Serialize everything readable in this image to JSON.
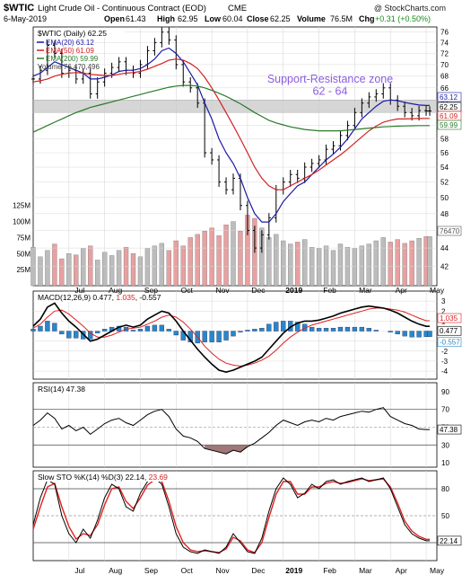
{
  "header": {
    "symbol": "$WTIC",
    "name": "Light Crude Oil - Continuous Contract (EOD)",
    "exchange": "CME",
    "watermark": "@ StockCharts.com",
    "date": "6-May-2019",
    "open_label": "Open",
    "open": "61.43",
    "high_label": "High",
    "high": "62.95",
    "low_label": "Low",
    "low": "60.04",
    "close_label": "Close",
    "close": "62.25",
    "volume_label": "Volume",
    "volume": "76.5M",
    "chg_label": "Chg",
    "chg": "+0.31 (+0.50%)"
  },
  "colors": {
    "price_bars": "#000000",
    "ema20": "#1a1aa6",
    "ema50": "#d42020",
    "ema200": "#2a7a2a",
    "volume_up": "#bcbcbc",
    "volume_down": "#e8a0a0",
    "zone_fill": "#c8c8c8",
    "zone_text": "#8a5ce0",
    "macd_line": "#000000",
    "signal_line": "#e02020",
    "histogram": "#2a86c8",
    "rsi_line": "#000000",
    "rsi_oversold_fill": "#a07878",
    "sto_k": "#000000",
    "sto_d": "#e02020",
    "grid": "#d9d9d9"
  },
  "chart_data": [
    {
      "type": "line",
      "panel": "price",
      "label": "$WTIC (Daily) 62.25",
      "y_scale": "log",
      "ylim": [
        40,
        77
      ],
      "y_ticks": [
        42,
        44,
        46,
        48,
        50,
        52,
        54,
        56,
        58,
        60,
        62,
        64,
        66,
        68,
        70,
        72,
        74,
        76
      ],
      "x_labels": [
        "Jul",
        "Aug",
        "Sep",
        "Oct",
        "Nov",
        "Dec",
        "2019",
        "Feb",
        "Mar",
        "Apr",
        "May"
      ],
      "x_label_months": [
        1,
        2,
        3,
        4,
        5,
        6,
        7,
        8,
        9,
        10,
        11
      ],
      "months_range": [
        0,
        11.3
      ],
      "x": [
        0.0,
        0.2,
        0.4,
        0.6,
        0.8,
        1.0,
        1.2,
        1.4,
        1.6,
        1.8,
        2.0,
        2.2,
        2.4,
        2.6,
        2.8,
        3.0,
        3.2,
        3.4,
        3.6,
        3.8,
        4.0,
        4.2,
        4.4,
        4.6,
        4.8,
        5.0,
        5.2,
        5.4,
        5.6,
        5.8,
        6.0,
        6.2,
        6.4,
        6.6,
        6.8,
        7.0,
        7.2,
        7.4,
        7.6,
        7.8,
        8.0,
        8.2,
        8.4,
        8.6,
        8.8,
        9.0,
        9.2,
        9.4,
        9.6,
        9.8,
        10.0,
        10.2,
        10.4,
        10.6,
        10.8,
        11.0,
        11.1
      ],
      "series": [
        {
          "name": "Close",
          "values": [
            67.5,
            69.0,
            73.5,
            72.0,
            68.5,
            69.0,
            67.5,
            68.5,
            65.0,
            67.0,
            68.5,
            69.5,
            70.5,
            69.0,
            68.5,
            70.0,
            72.5,
            74.0,
            76.0,
            74.5,
            70.0,
            67.0,
            66.0,
            63.5,
            56.0,
            55.0,
            52.0,
            51.0,
            52.5,
            49.0,
            46.0,
            44.0,
            45.5,
            47.5,
            51.0,
            52.0,
            53.0,
            52.5,
            54.0,
            54.5,
            55.0,
            56.5,
            57.0,
            58.5,
            60.0,
            62.0,
            63.5,
            64.5,
            65.0,
            66.0,
            64.0,
            63.0,
            62.0,
            61.5,
            62.3,
            62.25,
            62.25
          ]
        },
        {
          "name": "EMA(20) 63.12",
          "values": [
            68.0,
            68.5,
            69.5,
            70.5,
            70.0,
            69.5,
            69.0,
            68.5,
            67.5,
            67.5,
            67.8,
            68.2,
            68.8,
            69.0,
            69.0,
            69.3,
            70.0,
            71.0,
            72.5,
            73.0,
            72.0,
            70.5,
            68.5,
            66.5,
            63.5,
            61.0,
            58.0,
            56.0,
            54.5,
            52.5,
            50.0,
            48.0,
            47.0,
            47.0,
            48.0,
            49.5,
            50.5,
            51.5,
            52.0,
            53.0,
            54.0,
            55.0,
            55.8,
            56.8,
            58.0,
            59.5,
            61.0,
            62.0,
            63.0,
            63.8,
            64.0,
            63.9,
            63.6,
            63.4,
            63.2,
            63.12,
            63.12
          ]
        },
        {
          "name": "EMA(50) 61.09",
          "values": [
            67.0,
            67.2,
            67.5,
            68.0,
            68.3,
            68.5,
            68.6,
            68.5,
            68.3,
            68.2,
            68.1,
            68.1,
            68.3,
            68.5,
            68.6,
            68.8,
            69.2,
            69.7,
            70.2,
            70.8,
            71.0,
            70.8,
            70.2,
            69.3,
            67.8,
            66.0,
            64.0,
            62.0,
            60.0,
            58.0,
            56.0,
            54.0,
            52.5,
            51.5,
            51.0,
            51.0,
            51.5,
            52.0,
            52.5,
            53.0,
            53.6,
            54.3,
            55.0,
            55.7,
            56.5,
            57.4,
            58.3,
            59.2,
            59.9,
            60.5,
            60.8,
            61.0,
            61.0,
            61.05,
            61.08,
            61.09,
            61.09
          ]
        },
        {
          "name": "EMA(200) 59.99",
          "values": [
            59.0,
            59.5,
            60.0,
            60.5,
            61.0,
            61.5,
            62.0,
            62.4,
            62.8,
            63.1,
            63.4,
            63.7,
            64.0,
            64.3,
            64.6,
            64.9,
            65.2,
            65.5,
            65.8,
            66.1,
            66.3,
            66.4,
            66.4,
            66.3,
            66.0,
            65.6,
            65.1,
            64.6,
            64.0,
            63.4,
            62.7,
            62.0,
            61.4,
            60.8,
            60.4,
            60.1,
            59.8,
            59.6,
            59.4,
            59.3,
            59.2,
            59.2,
            59.2,
            59.2,
            59.3,
            59.4,
            59.5,
            59.6,
            59.7,
            59.8,
            59.85,
            59.9,
            59.93,
            59.96,
            59.98,
            59.99,
            59.99
          ]
        }
      ],
      "last_value_labels": [
        "63.12",
        "62.25",
        "61.09",
        "59.99"
      ],
      "annotations": [
        {
          "text": "Support-Resistance zone",
          "line2": "62 - 64",
          "y_range": [
            62,
            64
          ]
        }
      ],
      "legend_placement": "top-left"
    },
    {
      "type": "bar",
      "panel": "volume",
      "label": "Volume 76,470,496",
      "ylim": [
        0,
        140
      ],
      "y_ticks_labels": [
        "25M",
        "50M",
        "75M",
        "100M",
        "125M"
      ],
      "y_ticks": [
        25,
        50,
        75,
        100,
        125
      ],
      "last_value_label": "76470",
      "values": [
        60,
        45,
        55,
        65,
        42,
        50,
        48,
        58,
        62,
        40,
        52,
        47,
        55,
        60,
        50,
        45,
        58,
        62,
        66,
        55,
        70,
        62,
        75,
        80,
        85,
        90,
        78,
        95,
        100,
        85,
        110,
        105,
        90,
        75,
        80,
        70,
        65,
        68,
        72,
        60,
        58,
        62,
        55,
        65,
        60,
        58,
        62,
        65,
        70,
        75,
        68,
        72,
        66,
        70,
        74,
        76.5,
        76.5
      ],
      "unit": "M"
    },
    {
      "type": "line",
      "panel": "macd",
      "label": "MACD(12,26,9) 0.477, 1.035, -0.557",
      "label_parts": [
        "MACD(12,26,9) 0.477, ",
        "1.035",
        ", -0.557"
      ],
      "ylim": [
        -4.8,
        4.0
      ],
      "y_ticks": [
        -4,
        -3,
        -2,
        -1,
        0,
        1,
        2,
        3
      ],
      "last_value_labels": [
        "1.035",
        "0.477",
        "-0.557"
      ],
      "series": [
        {
          "name": "MACD",
          "values": [
            0.5,
            1.2,
            2.4,
            2.8,
            1.8,
            1.0,
            0.4,
            -0.3,
            -1.0,
            -0.8,
            -0.4,
            0.0,
            0.4,
            0.6,
            0.4,
            0.6,
            1.2,
            1.6,
            2.0,
            1.8,
            1.0,
            0.0,
            -0.9,
            -1.8,
            -2.6,
            -3.3,
            -3.9,
            -4.1,
            -3.9,
            -3.6,
            -3.3,
            -3.0,
            -2.6,
            -1.8,
            -1.0,
            -0.2,
            0.4,
            0.8,
            1.0,
            1.0,
            1.1,
            1.3,
            1.5,
            1.8,
            2.0,
            2.2,
            2.4,
            2.5,
            2.4,
            2.3,
            2.1,
            1.8,
            1.4,
            1.0,
            0.7,
            0.477,
            0.477
          ]
        },
        {
          "name": "Signal",
          "values": [
            0.3,
            0.7,
            1.4,
            2.0,
            2.1,
            1.7,
            1.1,
            0.5,
            -0.2,
            -0.6,
            -0.6,
            -0.4,
            -0.1,
            0.2,
            0.3,
            0.4,
            0.7,
            1.0,
            1.4,
            1.6,
            1.4,
            0.9,
            0.2,
            -0.6,
            -1.5,
            -2.2,
            -2.8,
            -3.2,
            -3.4,
            -3.5,
            -3.4,
            -3.2,
            -2.9,
            -2.5,
            -1.9,
            -1.2,
            -0.6,
            -0.1,
            0.3,
            0.6,
            0.8,
            1.0,
            1.2,
            1.4,
            1.6,
            1.8,
            2.0,
            2.2,
            2.3,
            2.3,
            2.2,
            2.1,
            1.9,
            1.6,
            1.3,
            1.035,
            1.035
          ]
        }
      ],
      "histogram": [
        0.2,
        0.5,
        1.0,
        0.8,
        -0.3,
        -0.7,
        -0.7,
        -0.8,
        -0.8,
        -0.2,
        0.2,
        0.4,
        0.5,
        0.4,
        0.1,
        0.2,
        0.5,
        0.6,
        0.6,
        0.2,
        -0.4,
        -0.9,
        -1.1,
        -1.2,
        -1.1,
        -1.1,
        -1.1,
        -0.9,
        -0.5,
        -0.1,
        0.1,
        0.2,
        0.3,
        0.7,
        0.9,
        1.0,
        1.0,
        0.9,
        0.7,
        0.4,
        0.3,
        0.3,
        0.3,
        0.4,
        0.4,
        0.4,
        0.4,
        0.3,
        0.1,
        0.0,
        -0.1,
        -0.3,
        -0.5,
        -0.6,
        -0.6,
        -0.557,
        -0.557
      ]
    },
    {
      "type": "line",
      "panel": "rsi",
      "label": "RSI(14) 47.38",
      "ylim": [
        5,
        100
      ],
      "y_ticks": [
        10,
        30,
        50,
        70,
        90
      ],
      "reference_lines": [
        70,
        30
      ],
      "last_value_label": "47.38",
      "series": [
        {
          "name": "RSI(14)",
          "values": [
            52,
            58,
            66,
            60,
            48,
            52,
            46,
            50,
            42,
            48,
            54,
            58,
            60,
            55,
            52,
            58,
            64,
            68,
            70,
            62,
            48,
            40,
            38,
            34,
            26,
            24,
            22,
            20,
            24,
            22,
            28,
            32,
            38,
            44,
            52,
            58,
            55,
            52,
            56,
            58,
            56,
            60,
            58,
            62,
            64,
            66,
            68,
            67,
            70,
            72,
            62,
            58,
            54,
            52,
            48,
            47.38,
            47.38
          ]
        }
      ]
    },
    {
      "type": "line",
      "panel": "stochastic",
      "label": "Slow STO %K(14) %D(3) 22.14, 23.69",
      "label_parts": [
        "Slow STO %K(14) %D(3) 22.14, ",
        "23.69"
      ],
      "ylim": [
        0,
        100
      ],
      "y_ticks": [
        20,
        50,
        80
      ],
      "reference_lines": [
        80,
        50,
        20
      ],
      "last_value_label": "22.14",
      "series": [
        {
          "name": "%K",
          "values": [
            40,
            70,
            90,
            85,
            50,
            30,
            20,
            35,
            25,
            45,
            70,
            85,
            80,
            60,
            55,
            75,
            88,
            92,
            85,
            60,
            30,
            15,
            10,
            8,
            12,
            10,
            8,
            15,
            30,
            20,
            10,
            8,
            25,
            55,
            80,
            92,
            85,
            70,
            75,
            85,
            80,
            88,
            90,
            85,
            88,
            90,
            92,
            88,
            90,
            92,
            80,
            60,
            40,
            30,
            25,
            22.14,
            22.14
          ]
        },
        {
          "name": "%D",
          "values": [
            35,
            60,
            82,
            86,
            60,
            38,
            24,
            30,
            28,
            40,
            62,
            80,
            82,
            66,
            58,
            70,
            84,
            90,
            88,
            66,
            38,
            20,
            12,
            10,
            11,
            10,
            9,
            13,
            26,
            22,
            12,
            9,
            20,
            48,
            74,
            88,
            88,
            74,
            74,
            82,
            82,
            86,
            88,
            86,
            87,
            89,
            91,
            89,
            90,
            91,
            82,
            64,
            44,
            33,
            27,
            23.69,
            23.69
          ]
        }
      ]
    }
  ]
}
